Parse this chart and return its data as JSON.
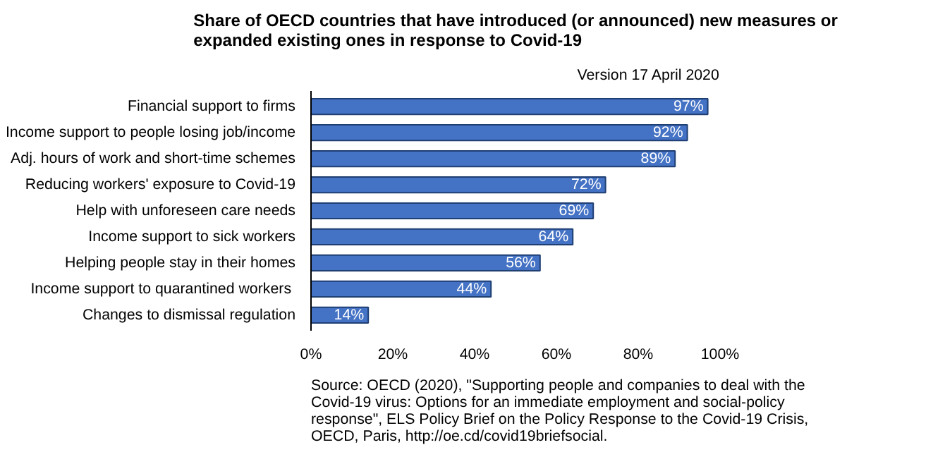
{
  "chart_data": {
    "type": "bar",
    "orientation": "horizontal",
    "title": "Share of OECD countries that have introduced (or announced) new measures or\nexpanded existing ones in response to Covid-19",
    "annotations": [
      "Version 17 April 2020",
      "Source: OECD (2020), \"Supporting people and companies to deal with the Covid-19 virus: Options for an immediate employment and social-policy response\", ELS Policy Brief on the Policy Response to the Covid-19 Crisis, OECD, Paris, http://oe.cd/covid19briefsocial."
    ],
    "categories": [
      "Financial support to firms",
      "Income support to people losing job/income",
      "Adj. hours of work and short-time schemes",
      "Reducing workers' exposure to Covid-19",
      "Help with unforeseen care needs",
      "Income support to sick workers",
      "Helping people stay in their homes",
      "Income support to quarantined  workers",
      "Changes to dismissal regulation"
    ],
    "values": [
      97,
      92,
      89,
      72,
      69,
      64,
      56,
      44,
      14
    ],
    "value_labels": [
      "97%",
      "92%",
      "89%",
      "72%",
      "69%",
      "64%",
      "56%",
      "44%",
      "14%"
    ],
    "color": "#4472c4",
    "xlim": [
      0,
      100
    ],
    "xticks": [
      {
        "value": 0,
        "label": "0%"
      },
      {
        "value": 20,
        "label": "20%"
      },
      {
        "value": 40,
        "label": "40%"
      },
      {
        "value": 60,
        "label": "60%"
      },
      {
        "value": 80,
        "label": "80%"
      },
      {
        "value": 100,
        "label": "100%"
      }
    ],
    "grid": false
  }
}
